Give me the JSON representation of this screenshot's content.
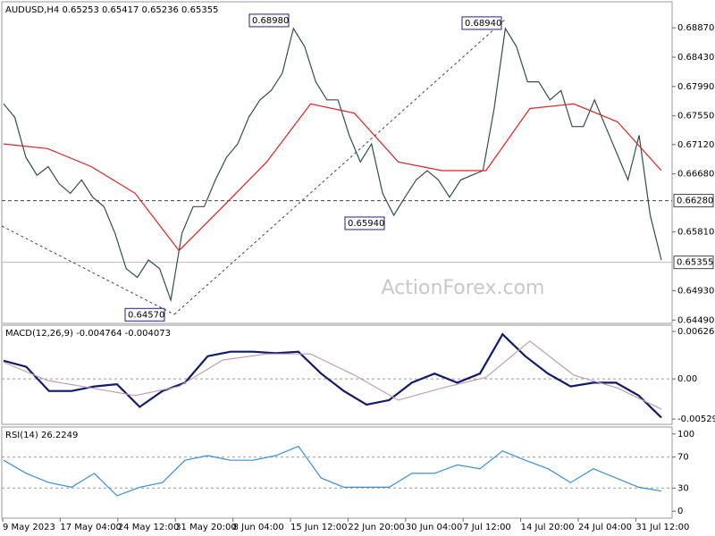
{
  "chart_data": [
    {
      "type": "line",
      "title": "AUDUSD,H4  0.65253 0.65417 0.65236 0.65355",
      "watermark": "ActionForex.com",
      "ylim": [
        0.6444,
        0.6926
      ],
      "yticks": [
        {
          "value": 0.6887,
          "label": "0.68870"
        },
        {
          "value": 0.6843,
          "label": "0.68430"
        },
        {
          "value": 0.6799,
          "label": "0.67990"
        },
        {
          "value": 0.6755,
          "label": "0.67550"
        },
        {
          "value": 0.6712,
          "label": "0.67120"
        },
        {
          "value": 0.6668,
          "label": "0.66680"
        },
        {
          "value": 0.6581,
          "label": "0.65810"
        },
        {
          "value": 0.6493,
          "label": "0.64930"
        },
        {
          "value": 0.6449,
          "label": "0.64490"
        }
      ],
      "hline": {
        "value": 0.6628,
        "label": "0.66280"
      },
      "last": {
        "value": 0.65355,
        "label": "0.65355"
      },
      "annotations": [
        {
          "value": 0.6898,
          "label": "0.68980"
        },
        {
          "value": 0.6894,
          "label": "0.68940"
        },
        {
          "value": 0.6594,
          "label": "0.65940"
        },
        {
          "value": 0.6457,
          "label": "0.64570"
        }
      ],
      "series": [
        {
          "name": "AUDUSD",
          "color": "#2f4f4f",
          "values": [
            0.6773,
            0.6753,
            0.6693,
            0.6666,
            0.6679,
            0.6653,
            0.6639,
            0.6659,
            0.6633,
            0.6619,
            0.6579,
            0.6526,
            0.6513,
            0.6539,
            0.6526,
            0.6479,
            0.6579,
            0.6619,
            0.6619,
            0.6659,
            0.6693,
            0.6713,
            0.6753,
            0.6779,
            0.6793,
            0.6819,
            0.6886,
            0.6859,
            0.6806,
            0.6779,
            0.6779,
            0.6726,
            0.6686,
            0.6713,
            0.6639,
            0.6606,
            0.6633,
            0.6659,
            0.6673,
            0.6659,
            0.6633,
            0.6659,
            0.6666,
            0.6673,
            0.6766,
            0.6886,
            0.6859,
            0.6806,
            0.6806,
            0.6779,
            0.6793,
            0.6739,
            0.6739,
            0.6779,
            0.6739,
            0.6699,
            0.6659,
            0.6726,
            0.6606,
            0.6539
          ]
        },
        {
          "name": "MA",
          "color": "#dd2222",
          "values": [
            0.6713,
            0.6706,
            0.6679,
            0.6639,
            0.6553,
            0.6619,
            0.6686,
            0.6773,
            0.6759,
            0.6686,
            0.6673,
            0.6673,
            0.6766,
            0.6773,
            0.6746,
            0.6673
          ]
        }
      ]
    },
    {
      "type": "line",
      "title": "MACD(12,26,9) -0.004764 -0.004073",
      "ylim": [
        -0.006,
        0.0071
      ],
      "yticks": [
        0.006268,
        {
          "value": 0,
          "label": "0.00"
        },
        -0.005299
      ],
      "series": [
        {
          "name": "MACD",
          "color": "#101a6e",
          "values": [
            0.0024,
            0.0016,
            -0.0016,
            -0.0016,
            -0.001,
            -0.0007,
            -0.0037,
            -0.0016,
            -0.0005,
            0.003,
            0.0036,
            0.0036,
            0.0034,
            0.0036,
            0.0007,
            -0.0016,
            -0.0034,
            -0.0028,
            -0.0005,
            0.0007,
            -0.0005,
            0.0007,
            0.0059,
            0.003,
            0.0007,
            -0.001,
            -0.0005,
            -0.0005,
            -0.0022,
            -0.0051
          ]
        },
        {
          "name": "Signal",
          "color": "#c0a0a8",
          "values": [
            0.0022,
            -0.0002,
            -0.0012,
            -0.0022,
            -0.001,
            0.0025,
            0.0033,
            0.0033,
            0.0005,
            -0.0028,
            -0.0012,
            0.0002,
            0.005,
            0.0005,
            -0.0012,
            -0.004
          ]
        }
      ]
    },
    {
      "type": "line",
      "title": "RSI(14) 26.2249",
      "ylim": [
        -9,
        109
      ],
      "yticks": [
        100,
        70,
        30,
        0
      ],
      "levels": [
        70,
        30
      ],
      "series": [
        {
          "name": "RSI",
          "color": "#3a8fd8",
          "values": [
            66,
            49,
            37,
            31,
            49,
            20,
            31,
            37,
            66,
            72,
            66,
            66,
            72,
            84,
            43,
            31,
            31,
            31,
            49,
            49,
            60,
            55,
            78,
            66,
            55,
            37,
            55,
            43,
            31,
            26
          ]
        }
      ],
      "x_labels": [
        "9 May 2023",
        "17 May 04:00",
        "24 May 12:00",
        "31 May 20:00",
        "8 Jun 04:00",
        "15 Jun 12:00",
        "22 Jun 20:00",
        "30 Jun 04:00",
        "7 Jul 12:00",
        "14 Jul 20:00",
        "24 Jul 04:00",
        "31 Jul 12:00"
      ]
    }
  ]
}
